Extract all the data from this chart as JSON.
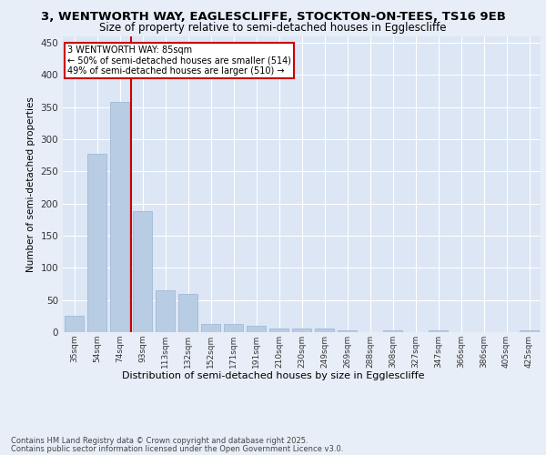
{
  "title_line1": "3, WENTWORTH WAY, EAGLESCLIFFE, STOCKTON-ON-TEES, TS16 9EB",
  "title_line2": "Size of property relative to semi-detached houses in Egglescliffe",
  "xlabel": "Distribution of semi-detached houses by size in Egglescliffe",
  "ylabel": "Number of semi-detached properties",
  "categories": [
    "35sqm",
    "54sqm",
    "74sqm",
    "93sqm",
    "113sqm",
    "132sqm",
    "152sqm",
    "171sqm",
    "191sqm",
    "210sqm",
    "230sqm",
    "249sqm",
    "269sqm",
    "288sqm",
    "308sqm",
    "327sqm",
    "347sqm",
    "366sqm",
    "386sqm",
    "405sqm",
    "425sqm"
  ],
  "values": [
    25,
    277,
    358,
    188,
    65,
    60,
    13,
    13,
    10,
    5,
    5,
    5,
    3,
    0,
    3,
    0,
    3,
    0,
    0,
    0,
    3
  ],
  "bar_color": "#b8cce4",
  "bar_edge_color": "#9ab3d0",
  "vline_x_index": 2.5,
  "vline_color": "#cc0000",
  "annotation_title": "3 WENTWORTH WAY: 85sqm",
  "annotation_line1": "← 50% of semi-detached houses are smaller (514)",
  "annotation_line2": "49% of semi-detached houses are larger (510) →",
  "annotation_box_color": "#ffffff",
  "annotation_box_edge": "#cc0000",
  "ylim": [
    0,
    460
  ],
  "yticks": [
    0,
    50,
    100,
    150,
    200,
    250,
    300,
    350,
    400,
    450
  ],
  "footer_line1": "Contains HM Land Registry data © Crown copyright and database right 2025.",
  "footer_line2": "Contains public sector information licensed under the Open Government Licence v3.0.",
  "bg_color": "#e8eef7",
  "plot_bg_color": "#dce6f5",
  "grid_color": "#ffffff"
}
